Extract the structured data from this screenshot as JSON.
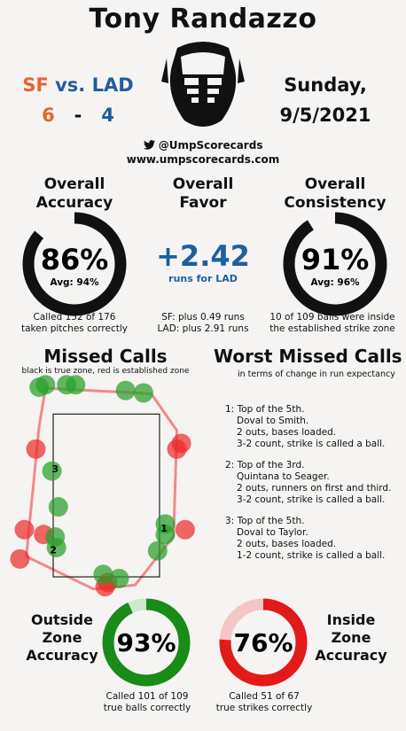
{
  "umpire": "Tony Randazzo",
  "game": {
    "away": "SF",
    "vs": "vs.",
    "home": "LAD",
    "away_score": "6",
    "dash": "-",
    "home_score": "4",
    "day": "Sunday,",
    "date": "9/5/2021"
  },
  "social": {
    "handle": "@UmpScorecards",
    "site": "www.umpscorecards.com"
  },
  "colors": {
    "sf": "#e8632b",
    "lad": "#1f5e9e",
    "good": "#1a8a1a",
    "bad": "#e21a1a",
    "ring_dark": "#111111"
  },
  "accuracy": {
    "title1": "Overall",
    "title2": "Accuracy",
    "value": "86%",
    "avg": "Avg: 94%",
    "fraction": 0.86,
    "note1": "Called 152 of 176",
    "note2": "taken pitches correctly"
  },
  "favor": {
    "title1": "Overall",
    "title2": "Favor",
    "value": "+2.42",
    "sub": "runs for LAD",
    "note1": "SF: plus 0.49 runs",
    "note2": "LAD: plus 2.91 runs"
  },
  "consistency": {
    "title1": "Overall",
    "title2": "Consistency",
    "value": "91%",
    "avg": "Avg: 96%",
    "fraction": 0.91,
    "note1": "10 of 109 balls were inside",
    "note2": "the established strike zone"
  },
  "missed_calls": {
    "title": "Missed Calls",
    "subtitle": "black is true zone, red is established zone"
  },
  "worst": {
    "title": "Worst Missed Calls",
    "subtitle": "in terms of change in run expectancy",
    "calls": [
      {
        "num": "1:",
        "line1": "Top of the 5th.",
        "line2": "Doval to Smith.",
        "line3": "2 outs, bases loaded.",
        "line4": "3-2 count, strike is called a ball."
      },
      {
        "num": "2:",
        "line1": "Top of the 3rd.",
        "line2": "Quintana to Seager.",
        "line3": "2 outs, runners on first and third.",
        "line4": "3-2 count, strike is called a ball."
      },
      {
        "num": "3:",
        "line1": "Top of the 5th.",
        "line2": "Doval to Taylor.",
        "line3": "2 outs, bases loaded.",
        "line4": "1-2 count, strike is called a ball."
      }
    ]
  },
  "outside_zone": {
    "label1": "Outside",
    "label2": "Zone",
    "label3": "Accuracy",
    "value": "93%",
    "fraction": 0.93,
    "note1": "Called 101 of 109",
    "note2": "true balls correctly"
  },
  "inside_zone": {
    "label1": "Inside",
    "label2": "Zone",
    "label3": "Accuracy",
    "value": "76%",
    "fraction": 0.76,
    "note1": "Called 51 of 67",
    "note2": "true strikes correctly"
  },
  "chart_data": {
    "type": "scatter",
    "xlim": [
      -1.55,
      1.55
    ],
    "ylim": [
      1.25,
      3.95
    ],
    "true_zone": {
      "x": [
        -0.83,
        0.83
      ],
      "y": [
        1.5,
        3.5
      ]
    },
    "established_zone": [
      [
        -0.95,
        3.82
      ],
      [
        0.7,
        3.75
      ],
      [
        1.1,
        3.3
      ],
      [
        1.05,
        2.0
      ],
      [
        0.45,
        1.4
      ],
      [
        -0.2,
        1.35
      ],
      [
        -1.25,
        1.75
      ],
      [
        -1.05,
        3.35
      ]
    ],
    "points": [
      {
        "x": -1.35,
        "y": 1.72,
        "called": "ball",
        "result": "missed"
      },
      {
        "x": -1.28,
        "y": 2.08,
        "called": "ball",
        "result": "missed"
      },
      {
        "x": -0.98,
        "y": 2.02,
        "called": "ball",
        "result": "missed"
      },
      {
        "x": -1.1,
        "y": 3.07,
        "called": "ball",
        "result": "missed"
      },
      {
        "x": 1.17,
        "y": 3.14,
        "called": "ball",
        "result": "missed"
      },
      {
        "x": 1.1,
        "y": 3.07,
        "called": "ball",
        "result": "missed"
      },
      {
        "x": 1.23,
        "y": 2.08,
        "called": "ball",
        "result": "missed"
      },
      {
        "x": 0.02,
        "y": 1.43,
        "called": "ball",
        "result": "missed"
      },
      {
        "x": -0.02,
        "y": 1.38,
        "called": "ball",
        "result": "missed"
      },
      {
        "x": -1.05,
        "y": 3.83,
        "called": "strike",
        "result": "correct"
      },
      {
        "x": -0.95,
        "y": 3.86,
        "called": "strike",
        "result": "correct"
      },
      {
        "x": -0.62,
        "y": 3.86,
        "called": "strike",
        "result": "correct"
      },
      {
        "x": -0.48,
        "y": 3.86,
        "called": "strike",
        "result": "correct"
      },
      {
        "x": 0.3,
        "y": 3.79,
        "called": "strike",
        "result": "correct"
      },
      {
        "x": 0.58,
        "y": 3.76,
        "called": "strike",
        "result": "correct"
      },
      {
        "x": -0.85,
        "y": 2.8,
        "called": "strike",
        "result": "correct"
      },
      {
        "x": -0.75,
        "y": 2.36,
        "called": "strike",
        "result": "correct"
      },
      {
        "x": -0.8,
        "y": 1.99,
        "called": "strike",
        "result": "correct"
      },
      {
        "x": -0.78,
        "y": 1.86,
        "called": "strike",
        "result": "correct"
      },
      {
        "x": 0.92,
        "y": 2.15,
        "called": "strike",
        "result": "correct"
      },
      {
        "x": 0.92,
        "y": 2.02,
        "called": "strike",
        "result": "correct"
      },
      {
        "x": 0.8,
        "y": 1.82,
        "called": "strike",
        "result": "correct"
      },
      {
        "x": -0.05,
        "y": 1.53,
        "called": "strike",
        "result": "correct"
      },
      {
        "x": 0.2,
        "y": 1.48,
        "called": "strike",
        "result": "correct"
      }
    ],
    "labels": [
      {
        "text": "1",
        "x": 0.9,
        "y": 2.1
      },
      {
        "text": "2",
        "x": -0.83,
        "y": 1.83
      },
      {
        "text": "3",
        "x": -0.8,
        "y": 2.83
      }
    ]
  }
}
